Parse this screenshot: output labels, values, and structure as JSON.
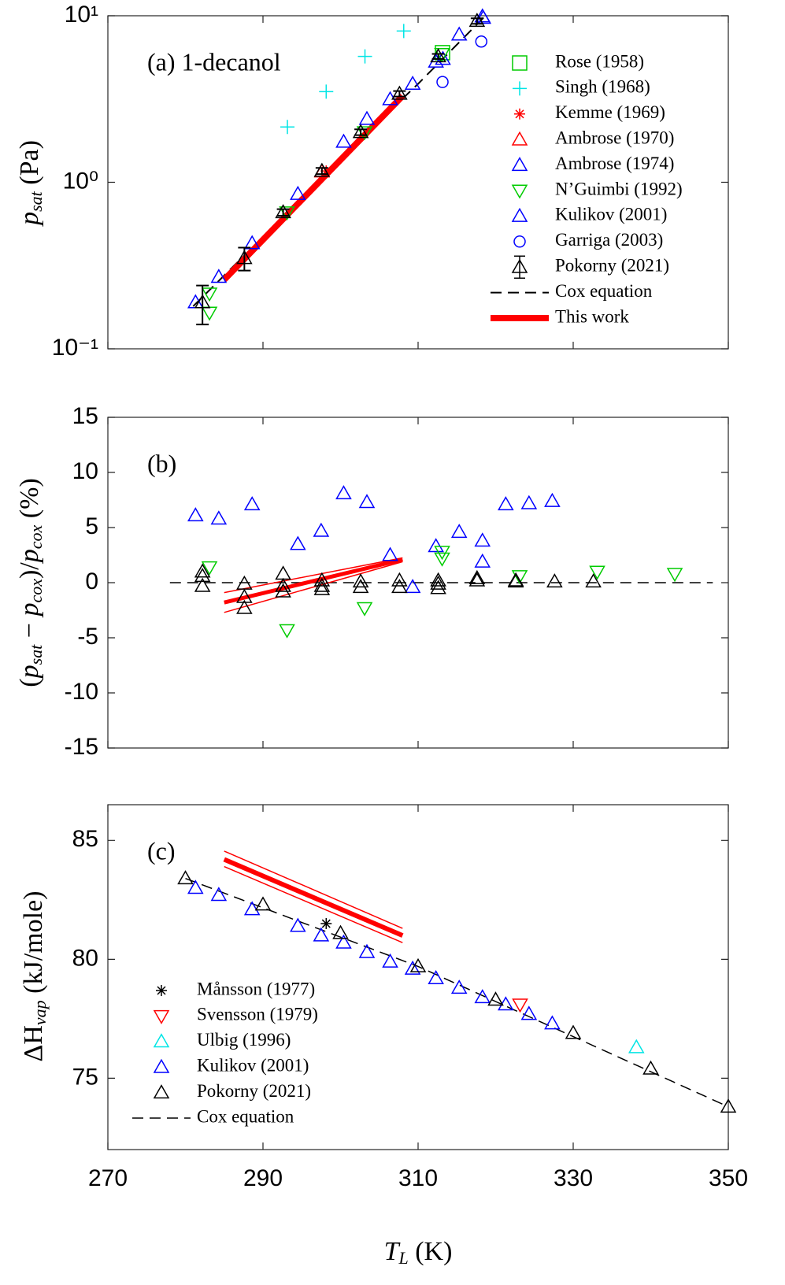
{
  "chart_data": [
    {
      "type": "scatter",
      "yscale": "log",
      "annotation": "(a) 1-decanol",
      "legend": "upper right",
      "ylabel": [
        "p",
        "sat",
        " (Pa)"
      ],
      "xlim": [
        270,
        350
      ],
      "xticks": [
        270,
        290,
        310,
        330,
        350
      ],
      "ylim": [
        0.1,
        10
      ],
      "yticks": [
        {
          "value": 0.1,
          "label": "10⁻¹"
        },
        {
          "value": 1,
          "label": "10⁰"
        },
        {
          "value": 10,
          "label": "10¹"
        }
      ],
      "series": [
        {
          "name": "Rose (1958)",
          "color": "#00cc00",
          "marker": "square",
          "x": [
            313.15
          ],
          "values": [
            6.0
          ]
        },
        {
          "name": "Singh (1968)",
          "color": "#00e5e5",
          "marker": "plus",
          "x": [
            293.15,
            298.15,
            303.15,
            308.15
          ],
          "values": [
            2.15,
            3.5,
            5.7,
            8.1
          ]
        },
        {
          "name": "Kemme (1969)",
          "color": "#ff0000",
          "marker": "asterisk",
          "x": [
            298.15
          ],
          "values": [
            1.17
          ]
        },
        {
          "name": "Ambrose (1970)",
          "color": "#ff0000",
          "marker": "triangle",
          "x": [
            297.6
          ],
          "values": [
            1.16
          ]
        },
        {
          "name": "Ambrose (1974)",
          "color": "#0000ff",
          "marker": "triangle",
          "x": [
            313.2,
            318.4
          ],
          "values": [
            5.5,
            9.7
          ]
        },
        {
          "name": "N’Guimbi (1992)",
          "color": "#00cc00",
          "marker": "triangle-down",
          "x": [
            283.1,
            283.1,
            293.1,
            303.1,
            313.1
          ],
          "values": [
            0.215,
            0.165,
            0.66,
            2.0,
            5.9
          ]
        },
        {
          "name": "Kulikov (2001)",
          "color": "#0000ff",
          "marker": "triangle",
          "x": [
            281.3,
            284.3,
            288.6,
            294.5,
            300.4,
            303.4,
            306.4,
            309.3,
            312.3,
            315.3,
            318.3
          ],
          "values": [
            0.19,
            0.27,
            0.43,
            0.85,
            1.75,
            2.4,
            3.15,
            3.9,
            5.3,
            7.7,
            9.9
          ]
        },
        {
          "name": "Garriga (2003)",
          "color": "#0000ff",
          "marker": "circle",
          "x": [
            313.15,
            318.15
          ],
          "values": [
            4.0,
            7.0
          ]
        },
        {
          "name": "Pokorny (2021)",
          "color": "#000000",
          "marker": "triangle",
          "x": [
            282.2,
            287.6,
            292.6,
            297.6,
            302.6,
            307.6,
            312.6,
            317.6
          ],
          "values": [
            0.19,
            0.35,
            0.66,
            1.17,
            2.0,
            3.4,
            5.7,
            9.3
          ],
          "errors": [
            0.05,
            0.055,
            0.03,
            0.05,
            0.08,
            0.13,
            0.2,
            0.35
          ]
        },
        {
          "name": "Cox equation",
          "color": "#000000",
          "marker": "line",
          "dash": true,
          "width": 2,
          "x": [
            281,
            290,
            300,
            310,
            318.5
          ],
          "values": [
            0.18,
            0.47,
            1.4,
            3.9,
            9.8
          ]
        },
        {
          "name": "This work",
          "color": "#ff0000",
          "marker": "line",
          "width": 8,
          "x": [
            285,
            308
          ],
          "values": [
            0.26,
            3.3
          ]
        }
      ]
    },
    {
      "type": "scatter",
      "annotation": "(b)",
      "ylabel": [
        "(",
        "p",
        "sat",
        " − ",
        "p",
        "cox",
        ")/",
        "p",
        "cox",
        " (%)"
      ],
      "xlim": [
        270,
        350
      ],
      "xticks": [
        270,
        290,
        310,
        330,
        350
      ],
      "ylim": [
        -15,
        15
      ],
      "yticks": [
        -15,
        -10,
        -5,
        0,
        5,
        10,
        15
      ],
      "series": [
        {
          "color": "#000000",
          "marker": "line",
          "dash": true,
          "width": 1.5,
          "x": [
            278,
            348
          ],
          "values": [
            0,
            0
          ]
        },
        {
          "color": "#ff0000",
          "marker": "line",
          "width": 1.5,
          "x": [
            285,
            308
          ],
          "values": [
            -0.9,
            2.25
          ]
        },
        {
          "color": "#ff0000",
          "marker": "line",
          "width": 1.5,
          "x": [
            285,
            308
          ],
          "values": [
            -2.7,
            1.9
          ]
        },
        {
          "color": "#ff0000",
          "marker": "line",
          "width": 5,
          "x": [
            285,
            308
          ],
          "values": [
            -1.8,
            2.1
          ]
        },
        {
          "color": "#0000ff",
          "marker": "triangle",
          "x": [
            281.3,
            284.3,
            288.6,
            294.5,
            297.5,
            300.4,
            303.4,
            306.4,
            309.3,
            312.3,
            315.3,
            318.3,
            318.3,
            321.3,
            324.3,
            327.3
          ],
          "values": [
            6.1,
            5.8,
            7.1,
            3.5,
            4.7,
            8.1,
            7.3,
            2.5,
            -0.4,
            3.3,
            4.6,
            3.8,
            1.9,
            7.1,
            7.2,
            7.4
          ]
        },
        {
          "color": "#00cc00",
          "marker": "triangle-down",
          "x": [
            283.1,
            293.1,
            303.1,
            313.1,
            313.1,
            323.1,
            333.1,
            343.1
          ],
          "values": [
            1.4,
            -4.3,
            -2.3,
            2.8,
            2.2,
            0.6,
            1.0,
            0.8
          ]
        },
        {
          "color": "#000000",
          "marker": "triangle",
          "x": [
            282.2,
            282.2,
            282.2,
            287.6,
            287.6,
            287.6,
            292.6,
            292.6,
            292.6,
            297.6,
            297.6,
            297.6,
            302.6,
            302.6,
            307.6,
            307.6,
            312.6,
            312.6,
            312.6,
            317.6,
            317.6,
            322.6,
            322.6,
            327.6,
            332.6
          ],
          "values": [
            1.0,
            0.6,
            -0.3,
            -0.1,
            -1.3,
            -2.3,
            0.8,
            -0.3,
            -0.8,
            0.2,
            -0.3,
            -0.6,
            0.1,
            -0.4,
            0.2,
            -0.4,
            0.2,
            -0.1,
            -0.5,
            0.4,
            0.2,
            0.2,
            0.1,
            0.1,
            0.1
          ]
        }
      ]
    },
    {
      "type": "scatter",
      "annotation": "(c)",
      "legend": "lower left",
      "xticklabels": true,
      "ylabel": [
        "ΔH",
        "vap",
        " (kJ/mole)"
      ],
      "xlabel": [
        "T",
        "L",
        " (K)"
      ],
      "xlim": [
        270,
        350
      ],
      "xticks": [
        270,
        290,
        310,
        330,
        350
      ],
      "ylim": [
        72,
        86.5
      ],
      "yticks": [
        75,
        80,
        85
      ],
      "series": [
        {
          "color": "#ff0000",
          "marker": "line",
          "width": 1.5,
          "x": [
            285,
            308
          ],
          "values": [
            84.55,
            81.3
          ]
        },
        {
          "color": "#ff0000",
          "marker": "line",
          "width": 1.5,
          "x": [
            285,
            308
          ],
          "values": [
            83.9,
            80.7
          ]
        },
        {
          "color": "#ff0000",
          "marker": "line",
          "width": 6,
          "x": [
            285,
            308
          ],
          "values": [
            84.2,
            81.0
          ]
        },
        {
          "name": "Månsson (1977)",
          "color": "#000000",
          "marker": "asterisk",
          "x": [
            298.15
          ],
          "values": [
            81.5
          ]
        },
        {
          "name": "Svensson (1979)",
          "color": "#ff0000",
          "marker": "triangle-down",
          "x": [
            323.15
          ],
          "values": [
            78.1
          ]
        },
        {
          "name": "Ulbig (1996)",
          "color": "#00e5e5",
          "marker": "triangle",
          "x": [
            338.15
          ],
          "values": [
            76.3
          ]
        },
        {
          "name": "Kulikov (2001)",
          "color": "#0000ff",
          "marker": "triangle",
          "x": [
            281.3,
            284.3,
            288.6,
            294.5,
            297.5,
            300.4,
            303.4,
            306.4,
            309.3,
            312.3,
            315.3,
            318.3,
            321.3,
            324.3,
            327.3
          ],
          "values": [
            83.0,
            82.7,
            82.1,
            81.4,
            81.0,
            80.7,
            80.3,
            79.9,
            79.6,
            79.2,
            78.8,
            78.4,
            78.1,
            77.7,
            77.3
          ]
        },
        {
          "name": "Pokorny (2021)",
          "color": "#000000",
          "marker": "triangle",
          "x": [
            280,
            290,
            300,
            310,
            320,
            330,
            340,
            350
          ],
          "values": [
            83.4,
            82.3,
            81.1,
            79.7,
            78.3,
            76.9,
            75.4,
            73.8
          ]
        },
        {
          "name": "Cox equation",
          "color": "#000000",
          "marker": "line",
          "dash": true,
          "width": 1.5,
          "x": [
            280,
            310,
            350
          ],
          "values": [
            83.4,
            79.7,
            73.8
          ]
        }
      ]
    }
  ]
}
